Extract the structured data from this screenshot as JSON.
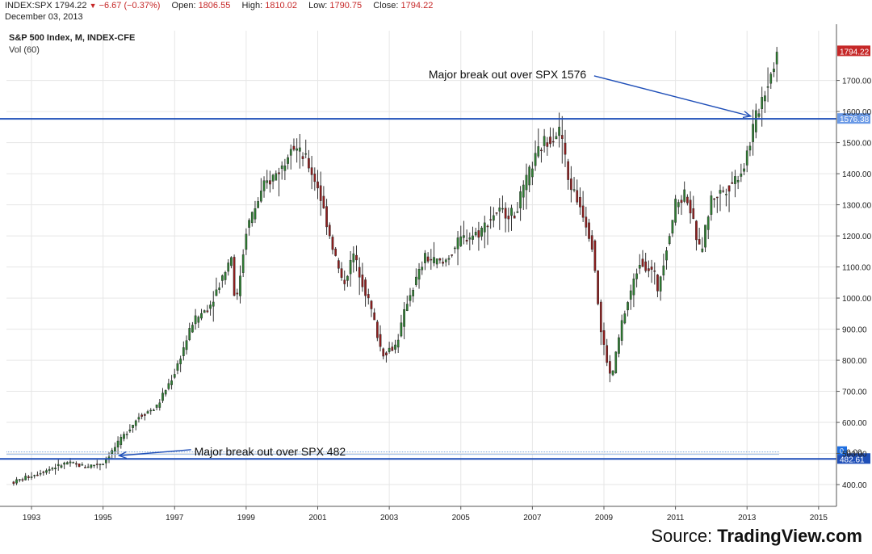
{
  "header": {
    "symbol": "INDEX:SPX",
    "last": "1794.22",
    "change": "−6.67 (−0.37%)",
    "open_label": "Open:",
    "open": "1806.55",
    "high_label": "High:",
    "high": "1810.02",
    "low_label": "Low:",
    "low": "1790.75",
    "close_label": "Close:",
    "close": "1794.22",
    "date": "December 03, 2013"
  },
  "source": {
    "prefix": "Source: ",
    "name": "TradingView.com"
  },
  "colors": {
    "up": "#2e7d32",
    "down": "#8e1e1e",
    "line": "#1f4fb8",
    "grid": "#e6e6e6"
  },
  "chart_data": {
    "type": "candlestick",
    "title": "S&P 500 Index, M, INDEX-CFE",
    "subtitle": "Vol (60)",
    "x_start": 1992.3,
    "x_end": 2015.5,
    "ylim": [
      330,
      1860
    ],
    "yticks": [
      400,
      500,
      600,
      700,
      800,
      900,
      1000,
      1100,
      1200,
      1300,
      1400,
      1500,
      1600,
      1700
    ],
    "ytick_labels": [
      "400.00",
      "500.00",
      "600.00",
      "700.00",
      "800.00",
      "900.00",
      "1000.00",
      "1100.00",
      "1200.00",
      "1300.00",
      "1400.00",
      "1500.00",
      "1600.00",
      "1700.00"
    ],
    "xticks": [
      1993,
      1995,
      1997,
      1999,
      2001,
      2003,
      2005,
      2007,
      2009,
      2011,
      2013,
      2015
    ],
    "xtick_labels": [
      "1993",
      "1995",
      "1997",
      "1999",
      "2001",
      "2003",
      "2005",
      "2007",
      "2009",
      "2011",
      "2013",
      "2015"
    ],
    "grid": true,
    "price_anchors": [
      [
        1992.5,
        408
      ],
      [
        1993.5,
        450
      ],
      [
        1994.0,
        470
      ],
      [
        1994.5,
        458
      ],
      [
        1995.0,
        470
      ],
      [
        1995.5,
        545
      ],
      [
        1996.0,
        620
      ],
      [
        1996.5,
        650
      ],
      [
        1997.0,
        760
      ],
      [
        1997.5,
        920
      ],
      [
        1998.0,
        980
      ],
      [
        1998.6,
        1140
      ],
      [
        1998.7,
        960
      ],
      [
        1999.0,
        1220
      ],
      [
        1999.5,
        1360
      ],
      [
        2000.0,
        1420
      ],
      [
        2000.25,
        1500
      ],
      [
        2000.7,
        1440
      ],
      [
        2001.0,
        1360
      ],
      [
        2001.3,
        1220
      ],
      [
        2001.7,
        1040
      ],
      [
        2002.0,
        1140
      ],
      [
        2002.5,
        960
      ],
      [
        2002.8,
        820
      ],
      [
        2003.2,
        850
      ],
      [
        2003.5,
        990
      ],
      [
        2004.0,
        1130
      ],
      [
        2004.5,
        1110
      ],
      [
        2005.0,
        1190
      ],
      [
        2005.5,
        1210
      ],
      [
        2006.0,
        1280
      ],
      [
        2006.5,
        1270
      ],
      [
        2007.0,
        1430
      ],
      [
        2007.3,
        1500
      ],
      [
        2007.8,
        1540
      ],
      [
        2008.0,
        1380
      ],
      [
        2008.4,
        1280
      ],
      [
        2008.7,
        1160
      ],
      [
        2008.9,
        900
      ],
      [
        2009.2,
        735
      ],
      [
        2009.5,
        920
      ],
      [
        2010.0,
        1120
      ],
      [
        2010.4,
        1080
      ],
      [
        2010.5,
        1030
      ],
      [
        2011.0,
        1300
      ],
      [
        2011.3,
        1340
      ],
      [
        2011.7,
        1140
      ],
      [
        2012.0,
        1320
      ],
      [
        2012.5,
        1360
      ],
      [
        2012.9,
        1420
      ],
      [
        2013.2,
        1560
      ],
      [
        2013.4,
        1640
      ],
      [
        2013.6,
        1700
      ],
      [
        2013.85,
        1794
      ]
    ],
    "last_price_label": "1794.22",
    "resistance_lines": [
      {
        "value": 1576.38,
        "label": "1576.38"
      },
      {
        "value": 482.61,
        "label": "482.61"
      }
    ],
    "volume_marker": {
      "value": 505,
      "axis_label": "0.00",
      "badge": "0"
    },
    "annotations": [
      {
        "text": "Major break out over SPX 1576",
        "text_x": 2004.1,
        "text_y": 1720,
        "target_x": 2013.1,
        "target_y": 1585
      },
      {
        "text": "Major break out over SPX 482",
        "text_x": 1997.55,
        "text_y": 507,
        "target_x": 1995.45,
        "target_y": 493
      }
    ]
  }
}
